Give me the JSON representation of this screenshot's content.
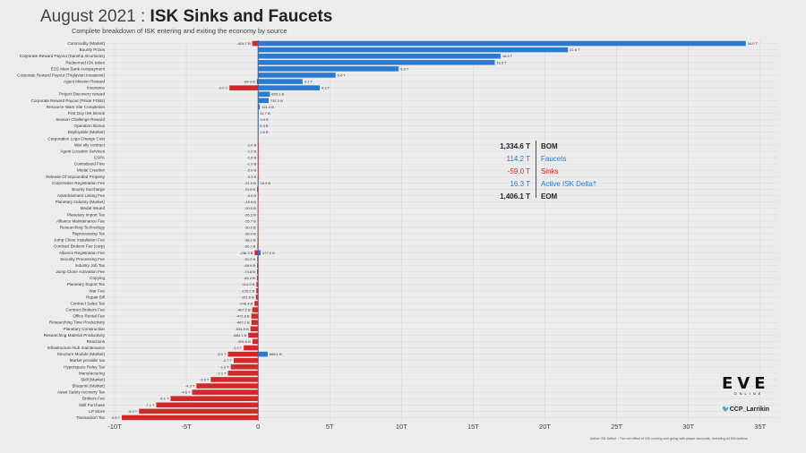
{
  "header": {
    "title_prefix": "August 2021 : ",
    "title_bold": "ISK Sinks and Faucets",
    "subtitle": "Complete breakdown of ISK entering and exiting the economy by source"
  },
  "summary": [
    {
      "value": "1,334.6 T",
      "label": "BOM",
      "style": "bold"
    },
    {
      "value": "114.2 T",
      "label": "Faucets",
      "style": "blue"
    },
    {
      "value": "-59.0 T",
      "label": "Sinks",
      "style": "red"
    },
    {
      "value": "16.3 T",
      "label": "Active ISK Delta†",
      "style": "blue"
    },
    {
      "value": "1,406.1 T",
      "label": "EOM",
      "style": "bold"
    }
  ],
  "logo": {
    "main": "EVE",
    "sub": "ONLINE"
  },
  "twitter": {
    "icon": "twitter-icon",
    "handle": "CCP_Larrikin"
  },
  "footnote": "Active ISK Delta† : The net effect of ISK coming and going with player accounts, including all DM actions.",
  "colors": {
    "faucet": "#2a7ad2",
    "sink": "#d62728",
    "axis": "#333333",
    "grid": "#d9d9d9"
  },
  "chart_data": {
    "type": "bar",
    "orientation": "horizontal",
    "xlim": [
      -10.5,
      36.2
    ],
    "x_ticks": [
      -10,
      -5,
      0,
      5,
      10,
      15,
      20,
      25,
      30,
      35
    ],
    "x_tick_labels": [
      "-10T",
      "-5T",
      "0",
      "5T",
      "10T",
      "15T",
      "20T",
      "25T",
      "30T",
      "35T"
    ],
    "grid": true,
    "categories": [
      "Commodity (Market)",
      "Bounty Prizes",
      "Corporate Reward Payout (Sansha Incursions)",
      "Redeemed ISK token",
      "ESS Main Bank Autopayment",
      "Corporate Reward Payout (Triglavian Invasions)",
      "Agent Mission Reward",
      "Insurance",
      "Project Discovery reward",
      "Corporate Reward Payout (Pirate FOBs)",
      "Resource Wars Site Completion",
      "First Day ISK Bonus",
      "Season Challenge Reward",
      "Operation Bonus",
      "Deployable (Market)",
      "Corporation Logo Change Cost",
      "War ally contract",
      "Agent Location Services",
      "CSPA",
      "Contraband Fine",
      "Medal Creation",
      "Release Of Impounded Property",
      "Corporation Registration Fee",
      "Bounty Surcharge",
      "Advertisement Listing Fee",
      "Planetary Industry (Market)",
      "Medal Issued",
      "Planetary Import Tax",
      "Alliance Maintainance Fee",
      "Researching Technology",
      "Reprocessing Tax",
      "Jump Clone Installation Fee",
      "Contract Brokers Fee (corp)",
      "Alliance Registration Fee",
      "Security Processing Fee",
      "Industry Job Tax",
      "Jump Clone Activation Fee",
      "Copying",
      "Planetary Export Tax",
      "War Fee",
      "Repair Bill",
      "Contract Sales Tax",
      "Contract Brokers Fee",
      "Office Rental Fee",
      "Researching Time Productivity",
      "Planetary Construction",
      "Researching Material Productivity",
      "Reactions",
      "Infrastructure Hub maintenance",
      "Structure Module (Market)",
      "Market provider tax",
      "Hyperspace Relay Tax",
      "Manufacturing",
      "Skill (Market)",
      "Blueprint (Market)",
      "Asset Safety recovery Tax",
      "Brokers Fee",
      "Skill Purchase",
      "LP Store",
      "Transaction Tax"
    ],
    "series": [
      {
        "type": "sink",
        "values": [
          -0.4047,
          0,
          0,
          0,
          0,
          0,
          -0.0844,
          -2.0,
          0,
          0,
          0,
          0,
          0,
          0,
          0,
          0,
          -0.001,
          -0.0012,
          -0.0016,
          -0.0019,
          -0.002,
          -0.0033,
          -0.021,
          -0.0709,
          -0.009,
          -0.0155,
          -0.02,
          -0.0263,
          -0.0257,
          -0.0302,
          -0.0303,
          -0.0382,
          -0.0522,
          -0.2363,
          -0.0612,
          -0.0689,
          -0.0748,
          -0.0842,
          -0.1149,
          -0.1252,
          -0.1516,
          -0.2464,
          -0.4072,
          -0.4728,
          -0.4672,
          -0.5319,
          -0.6841,
          -0.391,
          -1.0,
          -2.1,
          -1.7,
          -1.9,
          -2.1,
          -3.3,
          -4.3,
          -4.6,
          -6.1,
          -7.1,
          -8.3,
          -9.5
        ],
        "labels": [
          "-404.7 B",
          "",
          "",
          "",
          "",
          "",
          "-84.4 B",
          "-2.0 T",
          "",
          "",
          "",
          "",
          "",
          "",
          "",
          "",
          "-1.0 B",
          "-1.2 B",
          "-1.6 B",
          "-1.9 B",
          "-2.0 B",
          "-3.3 B",
          "-21.0 B",
          "-70.9 B",
          "-9.0 B",
          "-15.5 B",
          "-20.0 B",
          "-26.3 B",
          "-25.7 B",
          "-30.2 B",
          "-30.3 B",
          "-38.2 B",
          "-52.2 B",
          "-236.3 B",
          "-61.2 B",
          "-68.9 B",
          "-74.8 B",
          "-84.2 B",
          "-114.9 B",
          "-125.2 B",
          "-151.6 B",
          "-246.4 B",
          "-407.2 B",
          "-472.8 B",
          "-467.2 B",
          "-531.9 B",
          "-684.1 B",
          "-391.0 B",
          "-1.0 T",
          "-2.1 T",
          "-1.7 T",
          "-1.9 T",
          "-2.1 T",
          "-3.3 T",
          "-4.3 T",
          "-4.6 T",
          "-6.1 T",
          "-7.1 T",
          "-8.3 T",
          "-9.5 T"
        ]
      },
      {
        "type": "faucet",
        "values": [
          34.0,
          21.6,
          16.9,
          16.5,
          9.8,
          5.4,
          3.1,
          4.3,
          0.8251,
          0.7372,
          0.1214,
          0.0117,
          0.0099,
          0.0053,
          0.0018,
          0,
          0,
          0,
          0,
          0,
          0,
          0,
          0.0189,
          0,
          0,
          0,
          0,
          0,
          0,
          0,
          0,
          0,
          0,
          0.177,
          0,
          0,
          0,
          0,
          0,
          0,
          0,
          0,
          0,
          0,
          0,
          0,
          0,
          0,
          0,
          0.6681,
          0,
          0,
          0,
          0,
          0,
          0,
          0,
          0,
          0,
          0
        ],
        "labels": [
          "34.0 T",
          "21.6 T",
          "16.9 T",
          "16.5 T",
          "9.8 T",
          "5.4 T",
          "3.1 T",
          "4.3 T",
          "825.1 B",
          "737.2 B",
          "121.4 B",
          "11.7 B",
          "9.9 B",
          "5.3 B",
          "1.8 B",
          "",
          "",
          "",
          "",
          "",
          "",
          "",
          "18.9 B",
          "",
          "",
          "",
          "",
          "",
          "",
          "",
          "",
          "",
          "",
          "177.0 B",
          "",
          "",
          "",
          "",
          "",
          "",
          "",
          "",
          "",
          "",
          "",
          "",
          "",
          "",
          "",
          "668.1 B",
          "",
          "",
          "",
          "",
          "",
          "",
          "",
          "",
          "",
          ""
        ]
      }
    ]
  }
}
